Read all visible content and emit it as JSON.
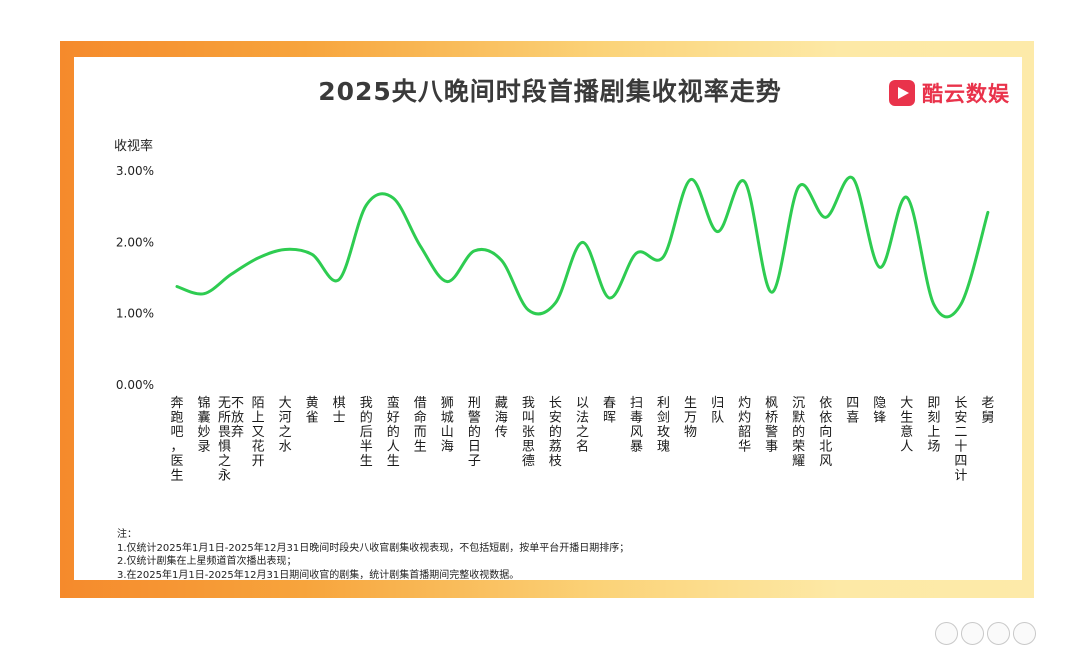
{
  "chart_data": {
    "type": "line",
    "title": "2025央八晚间时段首播剧集收视率走势",
    "ylabel": "收视率",
    "ylim": [
      0,
      3
    ],
    "yticks": [
      "0.00%",
      "1.00%",
      "2.00%",
      "3.00%"
    ],
    "yticks_values": [
      0,
      1,
      2,
      3
    ],
    "grid": false,
    "line_color": "#2ecc51",
    "categories": [
      "奔跑吧，医生",
      "锦囊妙录",
      "无所畏惧之永不放弃",
      "陌上又花开",
      "大河之水",
      "黄雀",
      "棋士",
      "我的后半生",
      "蛮好的人生",
      "借命而生",
      "狮城山海",
      "刑警的日子",
      "藏海传",
      "我叫张思德",
      "长安的荔枝",
      "以法之名",
      "春晖",
      "扫毒风暴",
      "利剑玫瑰",
      "生万物",
      "归队",
      "灼灼韶华",
      "枫桥警事",
      "沉默的荣耀",
      "依依向北风",
      "四喜",
      "隐锋",
      "大生意人",
      "即刻上场",
      "长安二十四计",
      "老舅"
    ],
    "series": [
      {
        "values": [
          1.38,
          1.28,
          1.55,
          1.78,
          1.9,
          1.83,
          1.48,
          2.52,
          2.62,
          1.95,
          1.45,
          1.88,
          1.75,
          1.05,
          1.15,
          2.0,
          1.22,
          1.85,
          1.8,
          2.88,
          2.15,
          2.85,
          1.3,
          2.78,
          2.35,
          2.9,
          1.65,
          2.63,
          1.13,
          1.13,
          2.42
        ]
      }
    ]
  },
  "brand": {
    "name": "酷云数娱",
    "logo_color": "#e9334b"
  },
  "notes": {
    "heading": "注：",
    "lines": [
      "1.仅统计2025年1月1日-2025年12月31日晚间时段央八收官剧集收视表现，不包括短剧，按单平台开播日期排序；",
      "2.仅统计剧集在上星频道首次播出表现；",
      "3.在2025年1月1日-2025年12月31日期间收官的剧集，统计剧集首播期间完整收视数据。"
    ]
  },
  "actions": {
    "items": [
      "like-icon",
      "comment-icon",
      "share-icon",
      "more-icon"
    ]
  }
}
